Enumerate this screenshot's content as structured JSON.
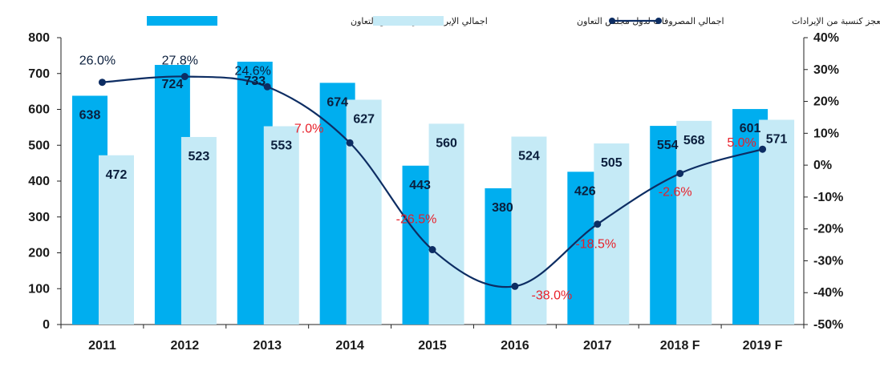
{
  "chart_data": {
    "type": "bar",
    "categories": [
      "2011",
      "2012",
      "2013",
      "2014",
      "2015",
      "2016",
      "2017",
      "2018 F",
      "2019 F"
    ],
    "series": [
      {
        "name": "اجمالي الإيرادات لدول مجلس التعاون",
        "type": "bar",
        "axis": "left",
        "color": "#00aeef",
        "values": [
          638,
          724,
          733,
          674,
          443,
          380,
          426,
          554,
          601
        ]
      },
      {
        "name": "اجمالي المصروفات لدول مجلس التعاون",
        "type": "bar",
        "axis": "left",
        "color": "#c5eaf6",
        "values": [
          472,
          523,
          553,
          627,
          560,
          524,
          505,
          568,
          571
        ]
      },
      {
        "name": "الفائض/العجز كنسبة من الإيرادات",
        "type": "line",
        "axis": "right",
        "color": "#0d2d63",
        "values": [
          26.0,
          27.8,
          24.6,
          7.0,
          -26.5,
          -38.0,
          -18.5,
          -2.6,
          5.0
        ],
        "labels": [
          "26.0%",
          "27.8%",
          "24.6%",
          "7.0%",
          "-26.5%",
          "-38.0%",
          "-18.5%",
          "-2.6%",
          "5.0%"
        ]
      }
    ],
    "y_left": {
      "min": 0,
      "max": 800,
      "ticks": [
        "0",
        "100",
        "200",
        "300",
        "400",
        "500",
        "600",
        "700",
        "800"
      ]
    },
    "y_right": {
      "min": -50,
      "max": 40,
      "ticks": [
        "-50%",
        "-40%",
        "-30%",
        "-20%",
        "-10%",
        "0%",
        "10%",
        "20%",
        "30%",
        "40%"
      ]
    },
    "legend_position": "top",
    "grid": false,
    "colors": {
      "positive_label": "#0b1f3d",
      "negative_label": "#e8202a"
    }
  }
}
